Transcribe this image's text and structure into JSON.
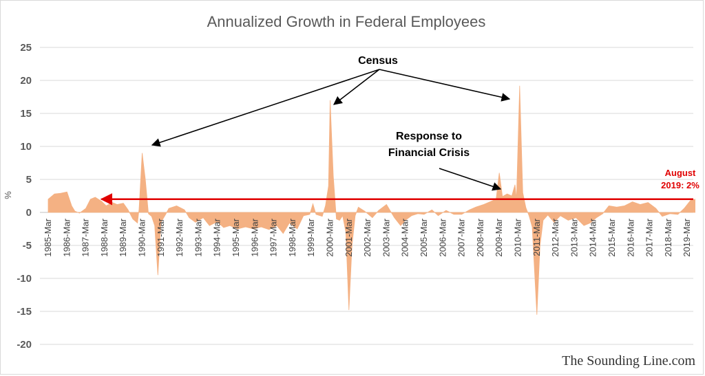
{
  "chart_data": {
    "type": "area",
    "title": "Annualized Growth in Federal Employees",
    "ylabel": "%",
    "xlabel": "",
    "ylim": [
      -20,
      25
    ],
    "yticks": [
      25,
      20,
      15,
      10,
      5,
      0,
      -5,
      -10,
      -15,
      -20
    ],
    "grid": "horizontal",
    "legend": "none",
    "colors": {
      "fill": "#f4b183",
      "annotation_arrow": "#000000",
      "current_line": "#e00000",
      "grid": "#d9d9d9"
    },
    "xtick_labels": [
      "1985-Mar",
      "1986-Mar",
      "1987-Mar",
      "1988-Mar",
      "1989-Mar",
      "1990-Mar",
      "1991-Mar",
      "1992-Mar",
      "1993-Mar",
      "1994-Mar",
      "1995-Mar",
      "1996-Mar",
      "1997-Mar",
      "1998-Mar",
      "1999-Mar",
      "2000-Mar",
      "2001-Mar",
      "2002-Mar",
      "2003-Mar",
      "2004-Mar",
      "2005-Mar",
      "2006-Mar",
      "2007-Mar",
      "2008-Mar",
      "2009-Mar",
      "2010-Mar",
      "2011-Mar",
      "2012-Mar",
      "2013-Mar",
      "2014-Mar",
      "2015-Mar",
      "2016-Mar",
      "2017-Mar",
      "2018-Mar",
      "2019-Mar"
    ],
    "x_start": "1985-Mar",
    "x_end": "2019-Aug",
    "series": [
      {
        "points": [
          [
            "1985-03",
            2.0
          ],
          [
            "1985-07",
            2.8
          ],
          [
            "1985-11",
            2.9
          ],
          [
            "1986-03",
            3.1
          ],
          [
            "1986-06",
            1.0
          ],
          [
            "1986-08",
            0.2
          ],
          [
            "1986-11",
            -0.1
          ],
          [
            "1987-03",
            0.6
          ],
          [
            "1987-06",
            2.0
          ],
          [
            "1987-09",
            2.3
          ],
          [
            "1988-01",
            1.7
          ],
          [
            "1988-04",
            1.0
          ],
          [
            "1988-08",
            1.5
          ],
          [
            "1988-11",
            1.2
          ],
          [
            "1989-03",
            1.4
          ],
          [
            "1989-06",
            0.4
          ],
          [
            "1989-09",
            -1.0
          ],
          [
            "1989-12",
            -1.6
          ],
          [
            "1990-01",
            0.5
          ],
          [
            "1990-03",
            9.0
          ],
          [
            "1990-05",
            5.0
          ],
          [
            "1990-07",
            -0.2
          ],
          [
            "1990-09",
            -0.6
          ],
          [
            "1990-11",
            -2.0
          ],
          [
            "1991-01",
            -9.5
          ],
          [
            "1991-03",
            -1.5
          ],
          [
            "1991-06",
            -0.3
          ],
          [
            "1991-08",
            0.6
          ],
          [
            "1992-01",
            1.0
          ],
          [
            "1992-06",
            0.4
          ],
          [
            "1992-09",
            -0.8
          ],
          [
            "1993-01",
            -1.5
          ],
          [
            "1993-06",
            -0.8
          ],
          [
            "1993-10",
            -2.0
          ],
          [
            "1994-03",
            -1.4
          ],
          [
            "1994-07",
            -2.3
          ],
          [
            "1994-11",
            -2.0
          ],
          [
            "1995-04",
            -2.5
          ],
          [
            "1995-09",
            -2.2
          ],
          [
            "1996-02",
            -2.5
          ],
          [
            "1996-07",
            -2.2
          ],
          [
            "1996-12",
            -2.6
          ],
          [
            "1997-05",
            -2.0
          ],
          [
            "1997-09",
            -3.2
          ],
          [
            "1998-01",
            -1.6
          ],
          [
            "1998-06",
            -2.5
          ],
          [
            "1998-10",
            -0.5
          ],
          [
            "1999-02",
            -0.3
          ],
          [
            "1999-04",
            1.3
          ],
          [
            "1999-06",
            -0.3
          ],
          [
            "1999-10",
            -0.6
          ],
          [
            "1999-12",
            1.0
          ],
          [
            "2000-02",
            4.0
          ],
          [
            "2000-03",
            17.0
          ],
          [
            "2000-05",
            5.5
          ],
          [
            "2000-07",
            -1.0
          ],
          [
            "2000-09",
            -1.2
          ],
          [
            "2000-11",
            -0.5
          ],
          [
            "2001-01",
            -3.0
          ],
          [
            "2001-03",
            -14.8
          ],
          [
            "2001-05",
            -5.0
          ],
          [
            "2001-07",
            -0.5
          ],
          [
            "2001-09",
            0.8
          ],
          [
            "2002-01",
            0.2
          ],
          [
            "2002-06",
            -0.8
          ],
          [
            "2002-10",
            0.3
          ],
          [
            "2003-03",
            1.2
          ],
          [
            "2003-08",
            -0.8
          ],
          [
            "2003-12",
            -2.0
          ],
          [
            "2004-03",
            -1.2
          ],
          [
            "2004-07",
            -0.5
          ],
          [
            "2004-11",
            -0.2
          ],
          [
            "2005-03",
            -0.3
          ],
          [
            "2005-08",
            0.4
          ],
          [
            "2005-12",
            -0.5
          ],
          [
            "2006-05",
            0.3
          ],
          [
            "2006-10",
            -0.3
          ],
          [
            "2007-03",
            -0.3
          ],
          [
            "2007-08",
            0.4
          ],
          [
            "2007-12",
            0.8
          ],
          [
            "2008-05",
            1.2
          ],
          [
            "2008-09",
            1.6
          ],
          [
            "2009-01",
            2.0
          ],
          [
            "2009-03",
            6.0
          ],
          [
            "2009-05",
            2.4
          ],
          [
            "2009-08",
            2.8
          ],
          [
            "2009-11",
            2.5
          ],
          [
            "2010-01",
            4.2
          ],
          [
            "2010-02",
            2.0
          ],
          [
            "2010-04",
            19.2
          ],
          [
            "2010-06",
            3.0
          ],
          [
            "2010-08",
            0.7
          ],
          [
            "2010-10",
            -0.5
          ],
          [
            "2010-12",
            -2.2
          ],
          [
            "2011-03",
            -15.5
          ],
          [
            "2011-05",
            -5.0
          ],
          [
            "2011-07",
            -1.2
          ],
          [
            "2011-10",
            -0.4
          ],
          [
            "2012-02",
            -1.5
          ],
          [
            "2012-06",
            -0.5
          ],
          [
            "2012-11",
            -1.2
          ],
          [
            "2013-04",
            -0.8
          ],
          [
            "2013-09",
            -2.0
          ],
          [
            "2014-01",
            -1.6
          ],
          [
            "2014-05",
            -0.8
          ],
          [
            "2014-09",
            -0.2
          ],
          [
            "2015-01",
            1.0
          ],
          [
            "2015-06",
            0.8
          ],
          [
            "2015-11",
            1.0
          ],
          [
            "2016-04",
            1.6
          ],
          [
            "2016-09",
            1.2
          ],
          [
            "2017-02",
            1.5
          ],
          [
            "2017-07",
            0.6
          ],
          [
            "2017-11",
            -0.6
          ],
          [
            "2018-04",
            -0.2
          ],
          [
            "2018-09",
            -0.3
          ],
          [
            "2019-01",
            0.6
          ],
          [
            "2019-05",
            1.8
          ],
          [
            "2019-08",
            2.0
          ]
        ]
      }
    ],
    "annotations": {
      "census": "Census",
      "financial_crisis_line1": "Response to",
      "financial_crisis_line2": "Financial Crisis",
      "latest_line1": "August",
      "latest_line2": "2019: 2%",
      "latest_value": 2.0
    }
  },
  "watermark": "The Sounding Line.com"
}
